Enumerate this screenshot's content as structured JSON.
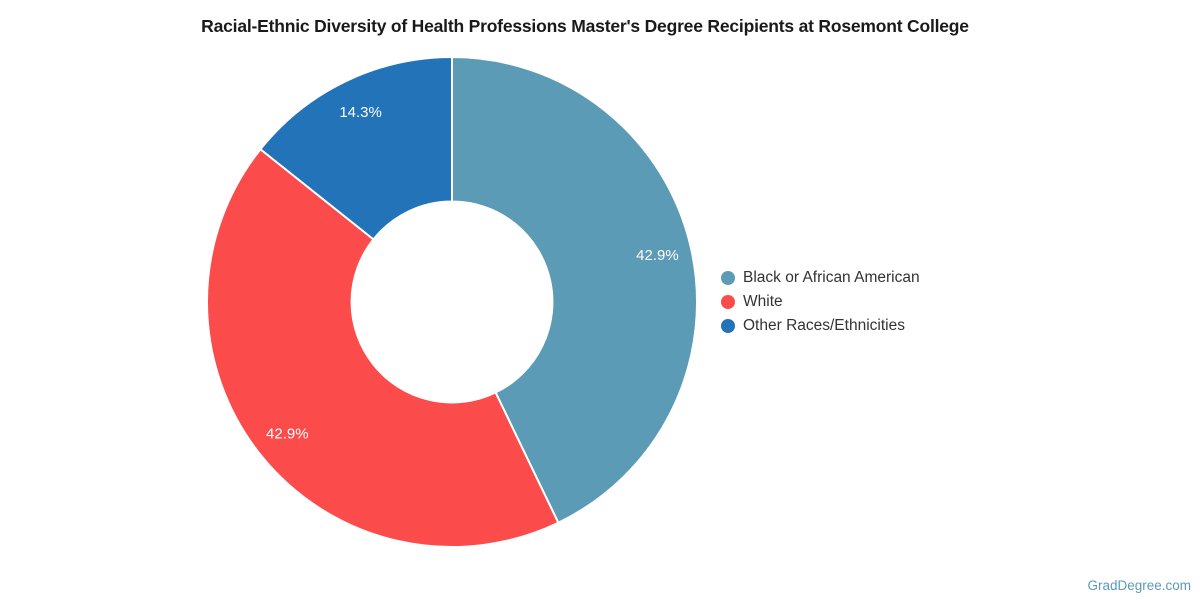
{
  "chart_data": {
    "type": "pie",
    "subtype": "donut",
    "title": "Racial-Ethnic Diversity of Health Professions Master's Degree Recipients at Rosemont College",
    "categories": [
      "Black or African American",
      "White",
      "Other Races/Ethnicities"
    ],
    "values": [
      42.9,
      42.9,
      14.3
    ],
    "labels": [
      "42.9%",
      "42.9%",
      "14.3%"
    ],
    "colors": [
      "#5b9bb5",
      "#fb4b4b",
      "#2273b8"
    ],
    "start_angle_deg": 0,
    "direction": "clockwise",
    "inner_radius_ratio": 0.41,
    "slice_border_color": "#ffffff",
    "label_color": "#ffffff",
    "legend_position": "right",
    "grid": false
  },
  "watermark": {
    "text": "GradDegree.com",
    "color": "#5b9bb5"
  }
}
